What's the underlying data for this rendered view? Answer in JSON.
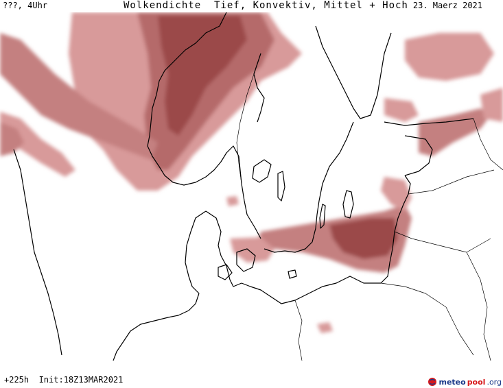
{
  "header": {
    "left": "???, 4Uhr",
    "title": "Wolkendichte  Tief, Konvektiv, Mittel + Hoch",
    "date": "23. Maerz 2021"
  },
  "footer": {
    "run_info": "+225h  Init:18Z13MAR2021"
  },
  "logo": {
    "part1": "meteo",
    "part2": "pool",
    "part3": ".org"
  },
  "colors": {
    "cloud_dark": "#9b4a4a",
    "cloud_mid": "#b56a6a",
    "cloud_light": "#d89a9a",
    "coastline": "#000000",
    "background": "#ffffff"
  }
}
